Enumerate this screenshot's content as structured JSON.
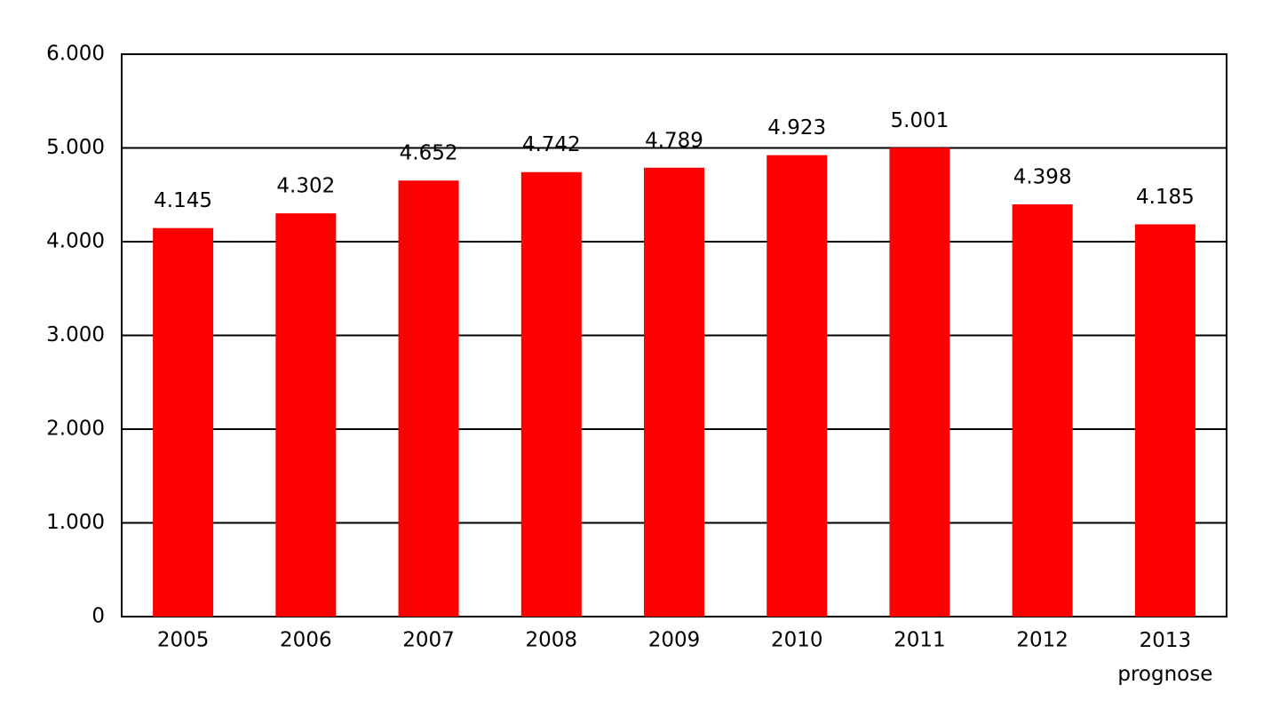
{
  "chart_data": {
    "type": "bar",
    "categories": [
      "2005",
      "2006",
      "2007",
      "2008",
      "2009",
      "2010",
      "2011",
      "2012",
      "2013 prognose"
    ],
    "values": [
      4145,
      4302,
      4652,
      4742,
      4789,
      4923,
      5001,
      4398,
      4185
    ],
    "value_labels": [
      "4.145",
      "4.302",
      "4.652",
      "4.742",
      "4.789",
      "4.923",
      "5.001",
      "4.398",
      "4.185"
    ],
    "color": "#ff0000",
    "ylim": [
      0,
      6000
    ],
    "yticks": [
      0,
      {
        "value": 1000,
        "label": "1.000"
      },
      {
        "value": 2000,
        "label": "2.000"
      },
      {
        "value": 3000,
        "label": "3.000"
      },
      {
        "value": 4000,
        "label": "4.000"
      },
      {
        "value": 5000,
        "label": "5.000"
      },
      {
        "value": 6000,
        "label": "6.000"
      }
    ],
    "grid": true
  }
}
